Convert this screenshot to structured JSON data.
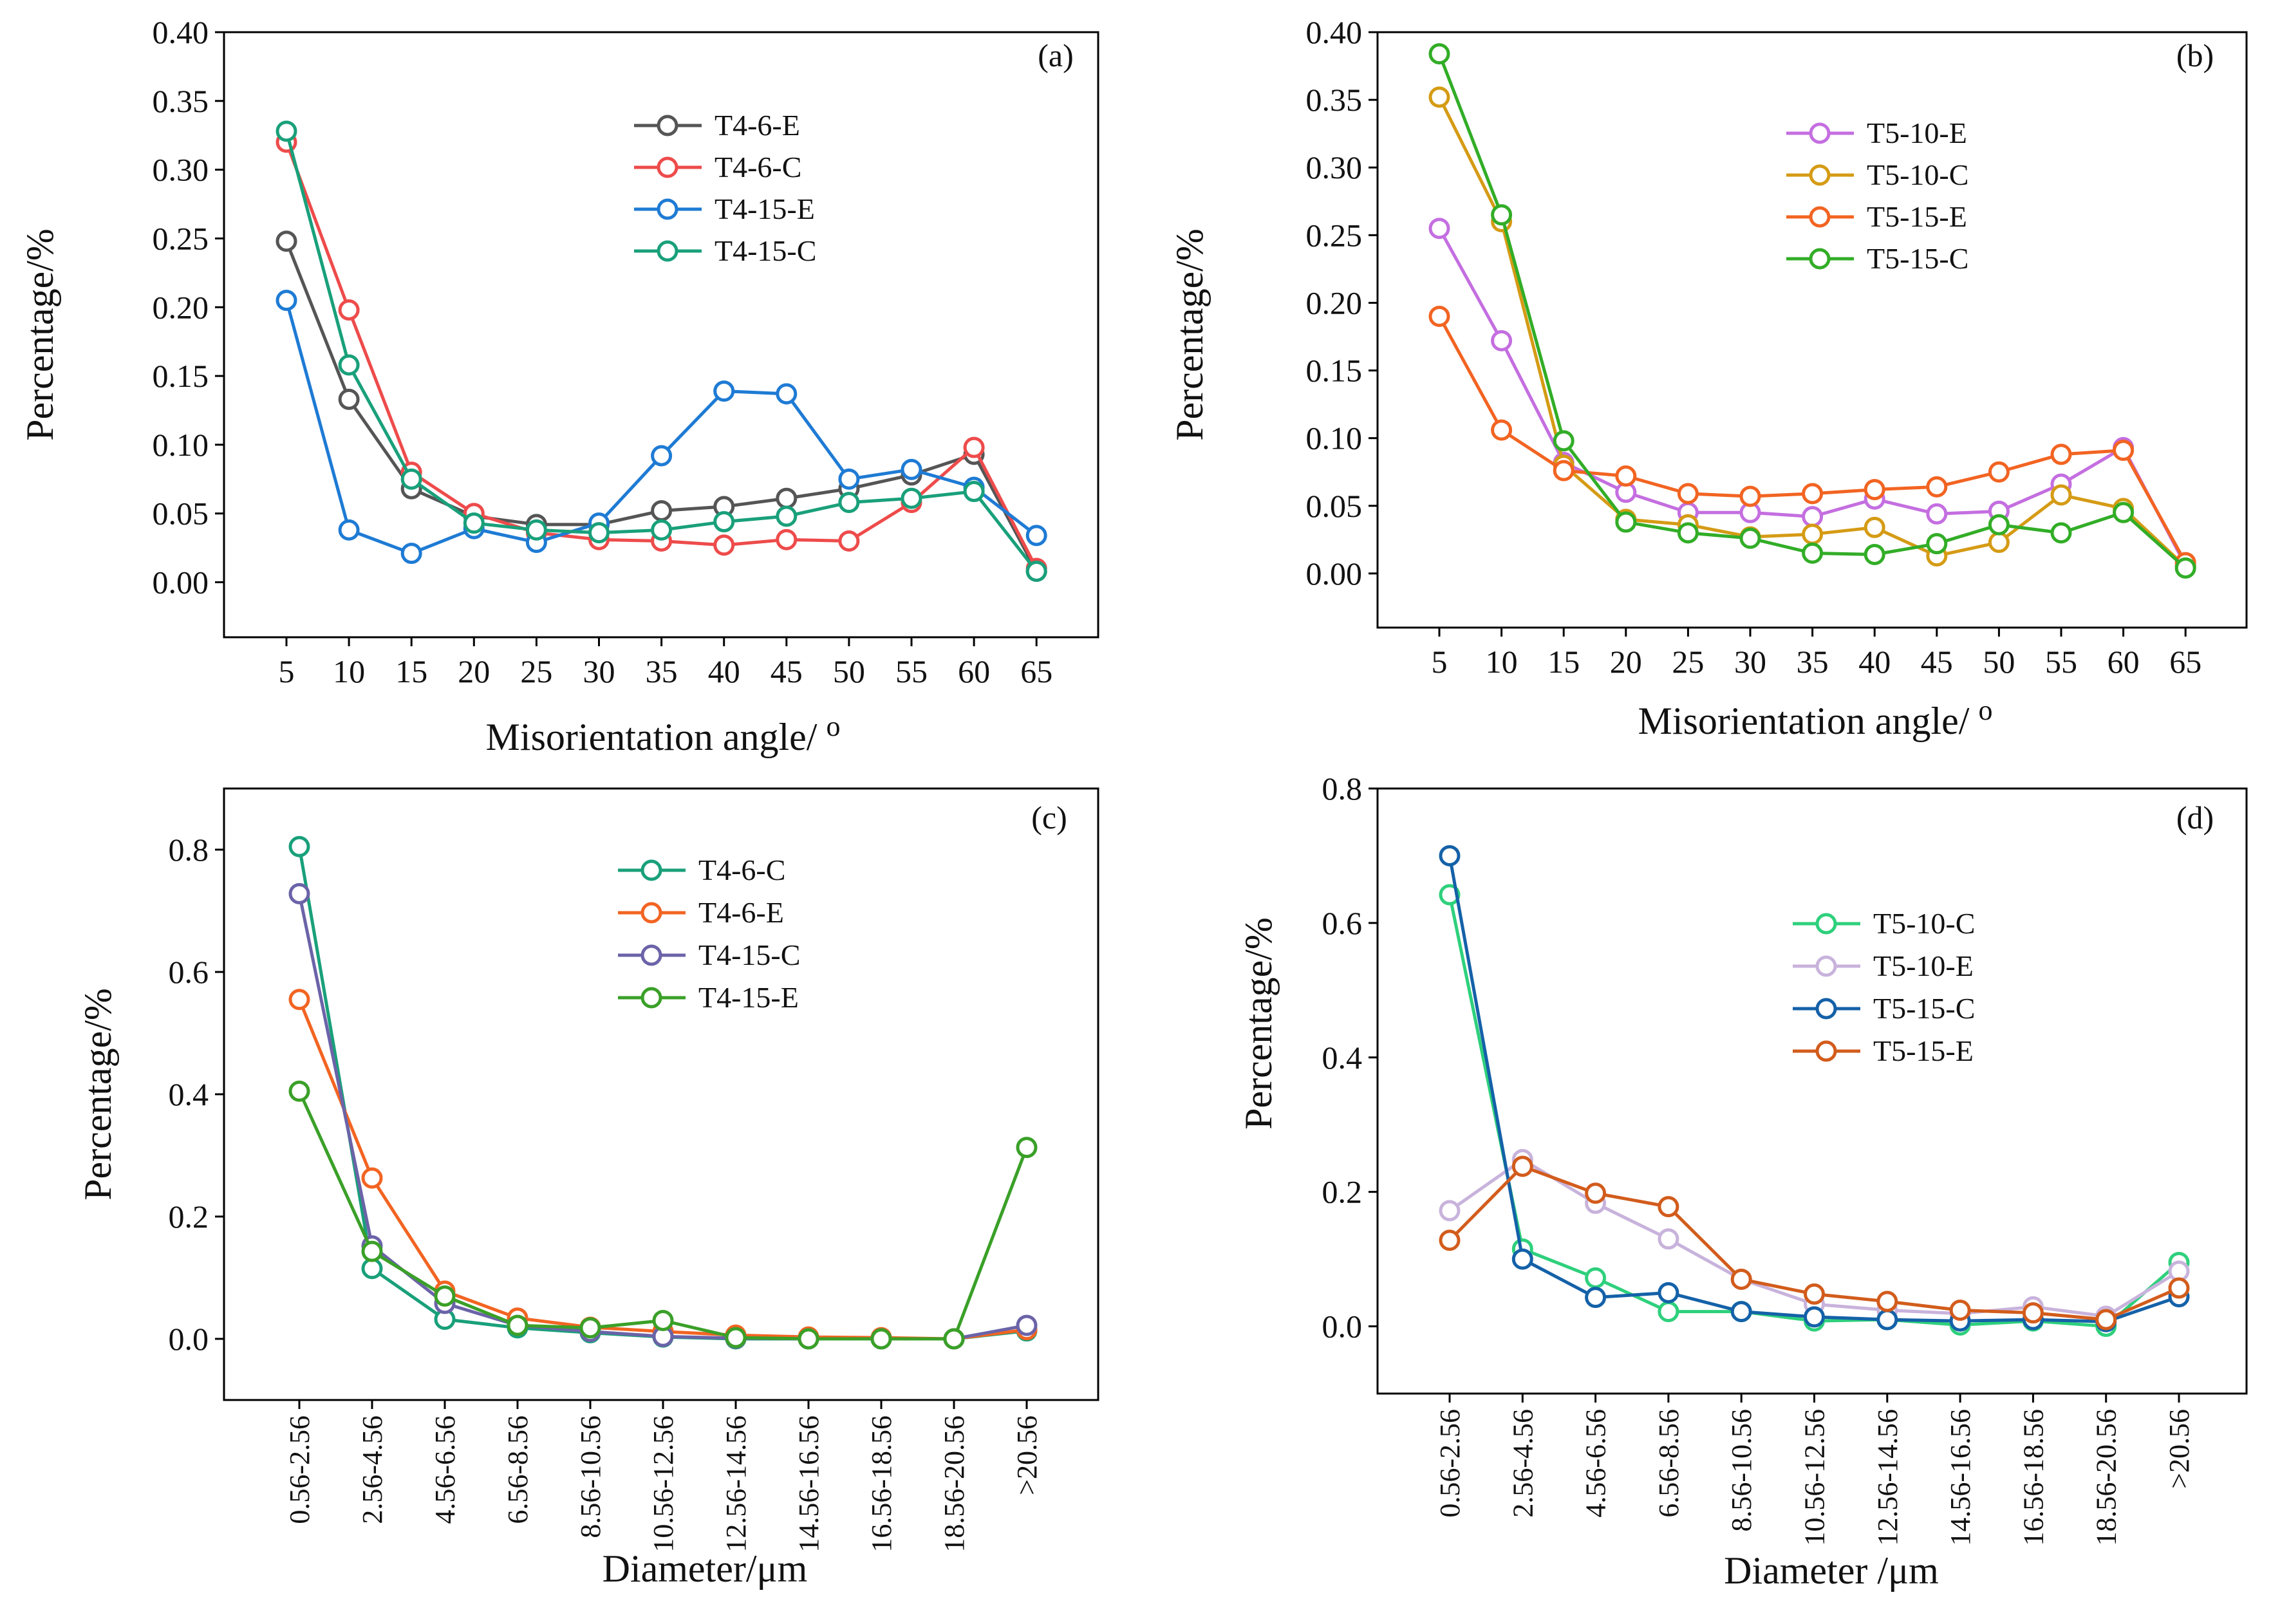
{
  "chart_data": [
    {
      "id": "a",
      "type": "line",
      "panel_label": "(a)",
      "xlabel": "Misorientation angle/",
      "xlabel_sup": "o",
      "ylabel": "Percentage/%",
      "categories": [
        "5",
        "10",
        "15",
        "20",
        "25",
        "30",
        "35",
        "40",
        "45",
        "50",
        "55",
        "60",
        "65"
      ],
      "yticks": [
        "0.00",
        "0.05",
        "0.10",
        "0.15",
        "0.20",
        "0.25",
        "0.30",
        "0.35",
        "0.40"
      ],
      "ylim": [
        -0.04,
        0.4
      ],
      "legend_position": "top-right",
      "series": [
        {
          "name": "T4-6-E",
          "color": "#555555",
          "values": [
            0.248,
            0.133,
            0.068,
            0.048,
            0.042,
            0.042,
            0.052,
            0.055,
            0.061,
            0.068,
            0.078,
            0.093,
            0.008
          ]
        },
        {
          "name": "T4-6-C",
          "color": "#ee4b4b",
          "values": [
            0.32,
            0.198,
            0.08,
            0.05,
            0.036,
            0.031,
            0.03,
            0.027,
            0.031,
            0.03,
            0.058,
            0.098,
            0.01
          ]
        },
        {
          "name": "T4-15-E",
          "color": "#1e7bd4",
          "values": [
            0.205,
            0.038,
            0.021,
            0.039,
            0.029,
            0.043,
            0.092,
            0.139,
            0.137,
            0.075,
            0.082,
            0.069,
            0.034
          ]
        },
        {
          "name": "T4-15-C",
          "color": "#19a07a",
          "values": [
            0.328,
            0.158,
            0.075,
            0.043,
            0.038,
            0.036,
            0.038,
            0.044,
            0.048,
            0.058,
            0.061,
            0.066,
            0.008
          ]
        }
      ]
    },
    {
      "id": "b",
      "type": "line",
      "panel_label": "(b)",
      "xlabel": "Misorientation angle/",
      "xlabel_sup": "o",
      "ylabel": "Percentage/%",
      "categories": [
        "5",
        "10",
        "15",
        "20",
        "25",
        "30",
        "35",
        "40",
        "45",
        "50",
        "55",
        "60",
        "65"
      ],
      "yticks": [
        "0.00",
        "0.05",
        "0.10",
        "0.15",
        "0.20",
        "0.25",
        "0.30",
        "0.35",
        "0.40"
      ],
      "ylim": [
        -0.04,
        0.4
      ],
      "legend_position": "top-right",
      "series": [
        {
          "name": "T5-10-E",
          "color": "#c46ee0",
          "values": [
            0.255,
            0.172,
            0.082,
            0.06,
            0.045,
            0.045,
            0.042,
            0.055,
            0.044,
            0.046,
            0.066,
            0.093,
            0.006
          ]
        },
        {
          "name": "T5-10-C",
          "color": "#d59b15",
          "values": [
            0.352,
            0.26,
            0.08,
            0.04,
            0.036,
            0.027,
            0.029,
            0.034,
            0.013,
            0.023,
            0.058,
            0.048,
            0.005
          ]
        },
        {
          "name": "T5-15-E",
          "color": "#f26422",
          "values": [
            0.19,
            0.106,
            0.076,
            0.072,
            0.059,
            0.057,
            0.059,
            0.062,
            0.064,
            0.075,
            0.088,
            0.091,
            0.008
          ]
        },
        {
          "name": "T5-15-C",
          "color": "#32ad27",
          "values": [
            0.384,
            0.265,
            0.098,
            0.038,
            0.03,
            0.026,
            0.015,
            0.014,
            0.022,
            0.036,
            0.03,
            0.045,
            0.004
          ]
        }
      ]
    },
    {
      "id": "c",
      "type": "line",
      "panel_label": "(c)",
      "xlabel": "Diameter/μm",
      "ylabel": "Percentage/%",
      "categories": [
        "0.56-2.56",
        "2.56-4.56",
        "4.56-6.56",
        "6.56-8.56",
        "8.56-10.56",
        "10.56-12.56",
        "12.56-14.56",
        "14.56-16.56",
        "16.56-18.56",
        "18.56-20.56",
        ">20.56"
      ],
      "yticks": [
        "0.0",
        "0.2",
        "0.4",
        "0.6",
        "0.8"
      ],
      "ylim": [
        -0.1,
        0.9
      ],
      "legend_position": "top-center",
      "series": [
        {
          "name": "T4-6-C",
          "color": "#19a07a",
          "values": [
            0.805,
            0.115,
            0.032,
            0.018,
            0.01,
            0.003,
            0.0,
            0.0,
            0.0,
            0.0,
            0.013
          ]
        },
        {
          "name": "T4-6-E",
          "color": "#f26422",
          "values": [
            0.555,
            0.263,
            0.078,
            0.034,
            0.019,
            0.012,
            0.006,
            0.003,
            0.002,
            0.0,
            0.015
          ]
        },
        {
          "name": "T4-15-C",
          "color": "#6b63a8",
          "values": [
            0.728,
            0.152,
            0.058,
            0.022,
            0.012,
            0.004,
            0.001,
            0.0,
            0.0,
            0.0,
            0.022
          ]
        },
        {
          "name": "T4-15-E",
          "color": "#3aa028",
          "values": [
            0.405,
            0.143,
            0.07,
            0.022,
            0.018,
            0.03,
            0.002,
            0.0,
            0.0,
            0.0,
            0.313
          ]
        }
      ]
    },
    {
      "id": "d",
      "type": "line",
      "panel_label": "(d)",
      "xlabel": "Diameter /μm",
      "ylabel": "Percentage/%",
      "categories": [
        "0.56-2.56",
        "2.56-4.56",
        "4.56-6.56",
        "6.56-8.56",
        "8.56-10.56",
        "10.56-12.56",
        "12.56-14.56",
        "14.56-16.56",
        "16.56-18.56",
        "18.56-20.56",
        ">20.56"
      ],
      "yticks": [
        "0.0",
        "0.2",
        "0.4",
        "0.6",
        "0.8"
      ],
      "ylim": [
        -0.1,
        0.8
      ],
      "legend_position": "top-center",
      "series": [
        {
          "name": "T5-10-C",
          "color": "#2ed07c",
          "values": [
            0.642,
            0.115,
            0.072,
            0.022,
            0.022,
            0.008,
            0.01,
            0.002,
            0.008,
            0.0,
            0.095
          ]
        },
        {
          "name": "T5-10-E",
          "color": "#c8b3dc",
          "values": [
            0.172,
            0.248,
            0.183,
            0.13,
            0.07,
            0.033,
            0.024,
            0.019,
            0.029,
            0.015,
            0.082
          ]
        },
        {
          "name": "T5-15-C",
          "color": "#1461a8",
          "values": [
            0.7,
            0.1,
            0.043,
            0.05,
            0.022,
            0.014,
            0.01,
            0.008,
            0.01,
            0.007,
            0.044
          ]
        },
        {
          "name": "T5-15-E",
          "color": "#d25c1c",
          "values": [
            0.128,
            0.238,
            0.198,
            0.178,
            0.07,
            0.048,
            0.037,
            0.024,
            0.02,
            0.01,
            0.057
          ]
        }
      ]
    }
  ]
}
